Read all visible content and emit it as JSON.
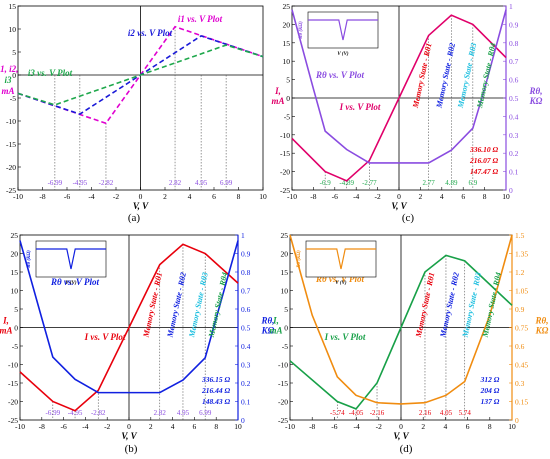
{
  "figure": {
    "panel_labels": [
      "(a)",
      "(b)",
      "(c)",
      "(d)"
    ]
  },
  "chart_data": [
    {
      "id": "a",
      "type": "line",
      "title": "",
      "xlabel": "V, V",
      "ylabel_lines": [
        "i1, i2,",
        "i3",
        "mA"
      ],
      "xlim": [
        -10,
        10
      ],
      "ylim": [
        -25,
        15
      ],
      "xticks": [
        -10,
        -8,
        -6,
        -4,
        -2,
        0,
        2,
        4,
        6,
        8,
        10
      ],
      "yticks": [
        -25,
        -20,
        -15,
        -10,
        -5,
        0,
        5,
        10,
        15
      ],
      "grid": false,
      "series": [
        {
          "name": "i1 vs. V Plot",
          "color": "#e000d0",
          "style": "dashed",
          "x": [
            -10,
            -2.82,
            0,
            2.82,
            10
          ],
          "y": [
            -4,
            -10.5,
            0,
            10.5,
            4
          ]
        },
        {
          "name": "i2 vs. V Plot",
          "color": "#1a1ad8",
          "style": "dashed",
          "x": [
            -10,
            -4.95,
            0,
            4.95,
            10
          ],
          "y": [
            -4,
            -8.5,
            0,
            8.5,
            4
          ]
        },
        {
          "name": "i3 vs. V Plot",
          "color": "#1fa84c",
          "style": "dashed",
          "x": [
            -10,
            -6.99,
            0,
            6.99,
            10
          ],
          "y": [
            -4,
            -6.5,
            0,
            6.5,
            4
          ]
        }
      ],
      "annotations": [
        "-6.99",
        "-4.95",
        "-2.82",
        "2.82",
        "4.95",
        "6.99"
      ]
    },
    {
      "id": "c",
      "type": "line",
      "xlabel": "V, V",
      "ylabel_left": [
        "I,",
        "mA"
      ],
      "ylabel_right": [
        "Rθ,",
        "KΩ"
      ],
      "xlim": [
        -10,
        10
      ],
      "ylim": [
        -25,
        25
      ],
      "y2lim": [
        0,
        1
      ],
      "xticks": [
        -10,
        -8,
        -6,
        -4,
        -2,
        0,
        2,
        4,
        6,
        8,
        10
      ],
      "yticks": [
        -25,
        -20,
        -15,
        -10,
        -5,
        0,
        5,
        10,
        15,
        20,
        25
      ],
      "y2ticks": [
        0,
        0.1,
        0.2,
        0.3,
        0.4,
        0.5,
        0.6,
        0.7,
        0.8,
        0.9,
        1
      ],
      "series": [
        {
          "name": "I vs. V Plot",
          "color": "#e0006a",
          "x": [
            -10,
            -6.9,
            -4.89,
            -2.77,
            0,
            2.77,
            4.89,
            6.9,
            10
          ],
          "y": [
            -11,
            -20,
            -22.5,
            -17,
            0,
            17,
            22.5,
            20,
            11
          ]
        },
        {
          "name": "Rθ vs. V Plot",
          "color": "#8a4ce0",
          "axis": "right",
          "x": [
            -10,
            -8,
            -6.9,
            -4.89,
            -2.77,
            2.77,
            4.89,
            6.9,
            8,
            10
          ],
          "y": [
            0.98,
            0.55,
            0.32,
            0.22,
            0.147,
            0.147,
            0.216,
            0.336,
            0.55,
            0.98
          ]
        }
      ],
      "annotations": [
        "-6.9",
        "-4.89",
        "-2.77",
        "2.77",
        "4.89",
        "6.9",
        "336.10 Ω",
        "216.07 Ω",
        "147.47 Ω"
      ],
      "regions": [
        "Memory State - Rθ1",
        "Memory State - Rθ2",
        "Memory State - Rθ3",
        "Memory State - Rθ4"
      ],
      "inset": {
        "ylabel": "Rθ (KΩ)",
        "xlabel": "V (V)"
      }
    },
    {
      "id": "b",
      "type": "line",
      "xlabel": "V, V",
      "ylabel_left": [
        "I,",
        "mA"
      ],
      "ylabel_right": [
        "Rθ,",
        "KΩ"
      ],
      "xlim": [
        -10,
        10
      ],
      "ylim": [
        -25,
        25
      ],
      "y2lim": [
        0,
        1
      ],
      "xticks": [
        -10,
        -8,
        -6,
        -4,
        -2,
        0,
        2,
        4,
        6,
        8,
        10
      ],
      "yticks": [
        -25,
        -20,
        -15,
        -10,
        -5,
        0,
        5,
        10,
        15,
        20,
        25
      ],
      "y2ticks": [
        0,
        0.1,
        0.2,
        0.3,
        0.4,
        0.5,
        0.6,
        0.7,
        0.8,
        0.9,
        1
      ],
      "series": [
        {
          "name": "I vs. V Plot",
          "color": "#e8000c",
          "x": [
            -10,
            -6.99,
            -4.95,
            -2.82,
            0,
            2.82,
            4.95,
            6.99,
            10
          ],
          "y": [
            -12,
            -20,
            -22.5,
            -17,
            0,
            17,
            22.5,
            20,
            12
          ]
        },
        {
          "name": "Rθ vs. V Plot",
          "color": "#1020e0",
          "axis": "right",
          "x": [
            -10,
            -8,
            -6.99,
            -4.95,
            -2.82,
            2.82,
            4.95,
            6.99,
            8,
            10
          ],
          "y": [
            0.97,
            0.55,
            0.34,
            0.22,
            0.148,
            0.148,
            0.216,
            0.336,
            0.55,
            0.97
          ]
        }
      ],
      "annotations": [
        "-6.99",
        "-4.95",
        "-2.82",
        "2.82",
        "4.95",
        "6.99",
        "336.15 Ω",
        "216.44 Ω",
        "148.43 Ω"
      ],
      "regions": [
        "Memory State - Rθ1",
        "Memory State - Rθ2",
        "Memory State - Rθ3",
        "Memory State - Rθ4"
      ],
      "inset": {
        "ylabel": "Rθ (KΩ)",
        "xlabel": "V (V)"
      }
    },
    {
      "id": "d",
      "type": "line",
      "xlabel": "V, V",
      "ylabel_left": [
        "I,",
        "mA"
      ],
      "ylabel_right": [
        "Rθ,",
        "KΩ"
      ],
      "xlim": [
        -10,
        10
      ],
      "ylim": [
        -25,
        25
      ],
      "y2lim": [
        0,
        1.5
      ],
      "xticks": [
        -10,
        -8,
        -6,
        -4,
        -2,
        0,
        2,
        4,
        6,
        8,
        10
      ],
      "yticks": [
        -25,
        -20,
        -15,
        -10,
        -5,
        0,
        5,
        10,
        15,
        20,
        25
      ],
      "y2ticks": [
        0,
        0.15,
        0.3,
        0.45,
        0.6,
        0.75,
        0.9,
        1.05,
        1.2,
        1.35,
        1.5
      ],
      "series": [
        {
          "name": "I vs. V Plot",
          "color": "#18a048",
          "x": [
            -10,
            -5.74,
            -4.05,
            -2.16,
            0,
            2.16,
            4.05,
            5.74,
            10
          ],
          "y": [
            -9,
            -20,
            -22,
            -15,
            0,
            15,
            19.5,
            18,
            6
          ]
        },
        {
          "name": "Rθ vs. V Plot",
          "color": "#f08c10",
          "axis": "right",
          "x": [
            -10,
            -8,
            -5.74,
            -4.05,
            -2.16,
            0,
            2.16,
            4.05,
            5.74,
            8,
            10
          ],
          "y": [
            1.5,
            0.85,
            0.35,
            0.2,
            0.14,
            0.13,
            0.14,
            0.2,
            0.312,
            0.85,
            1.5
          ]
        }
      ],
      "annotations": [
        "-5.74",
        "-4.05",
        "-2.16",
        "2.16",
        "4.05",
        "5.74",
        "312 Ω",
        "204 Ω",
        "137 Ω"
      ],
      "regions": [
        "Memory State - Rθ1",
        "Memory State - Rθ2",
        "Memory State - Rθ3",
        "Memory State - Rθ4"
      ],
      "inset": {
        "ylabel": "Rθ (KΩ)",
        "xlabel": "V (V)"
      }
    }
  ]
}
